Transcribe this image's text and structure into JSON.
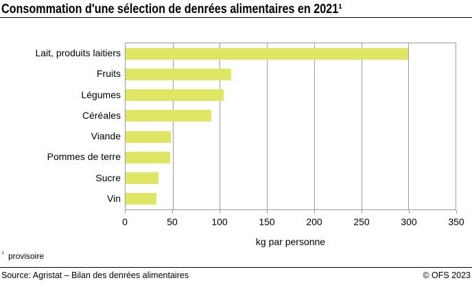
{
  "title": "Consommation d'une sélection de denrées alimentaires en 2021¹",
  "chart_data": {
    "type": "bar",
    "orientation": "horizontal",
    "categories": [
      "Lait, produits laitiers",
      "Fruits",
      "Légumes",
      "Céréales",
      "Viande",
      "Pommes de terre",
      "Sucre",
      "Vin"
    ],
    "values": [
      300,
      112,
      104,
      91,
      48,
      47,
      35,
      33
    ],
    "title": "Consommation d'une sélection de denrées alimentaires en 2021¹",
    "xlabel": "kg par personne",
    "ylabel": "",
    "xlim": [
      0,
      350
    ],
    "xticks": [
      0,
      50,
      100,
      150,
      200,
      250,
      300,
      350
    ],
    "grid": true,
    "legend": false,
    "bar_color": "#dfe663",
    "grid_color": "#9b9b9b"
  },
  "footnote": {
    "marker": "¹",
    "text": "provisoire"
  },
  "footer": {
    "source": "Source: Agristat – Bilan des denrées alimentaires",
    "copyright": "© OFS 2023"
  }
}
